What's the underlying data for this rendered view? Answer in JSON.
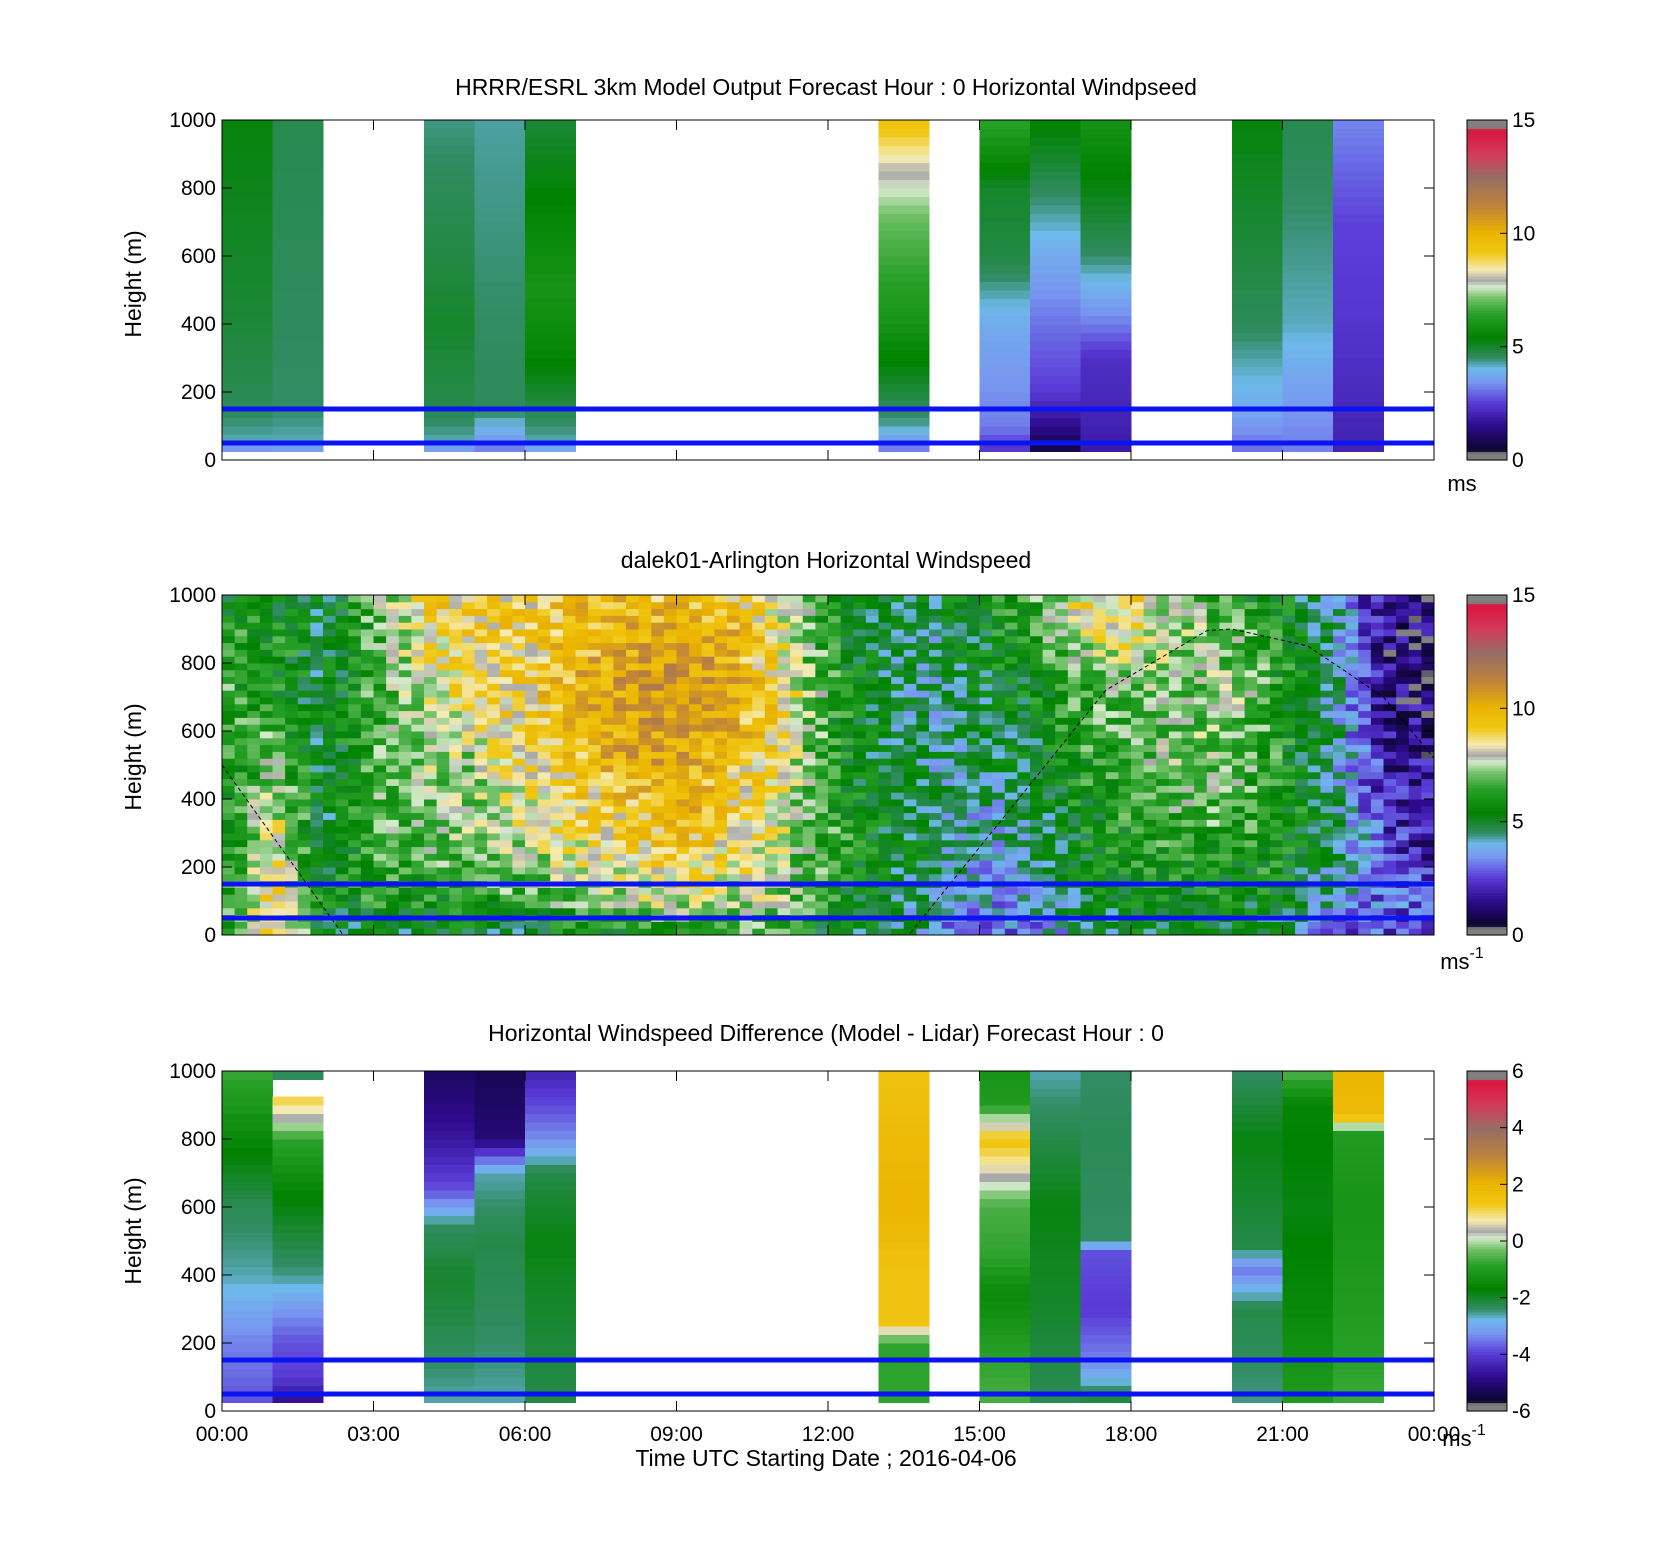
{
  "figure": {
    "xlabel": "Time UTC  Starting Date ; 2016-04-06",
    "x_tick_labels": [
      "00:00",
      "03:00",
      "06:00",
      "09:00",
      "12:00",
      "15:00",
      "18:00",
      "21:00",
      "00:00"
    ]
  },
  "chart_data": [
    {
      "type": "heatmap",
      "title": "HRRR/ESRL 3km Model Output   Forecast Hour : 0 Horizontal Windpseed",
      "ylabel": "Height (m)",
      "xlim": [
        0,
        24
      ],
      "ylim": [
        0,
        1000
      ],
      "y_ticks": [
        0,
        200,
        400,
        600,
        800,
        1000
      ],
      "colorbar": {
        "range": [
          0,
          15
        ],
        "ticks": [
          0,
          5,
          10,
          15
        ],
        "unit": "ms"
      },
      "reference_lines_m": [
        50,
        150
      ],
      "reference_line_color": "#0a14f0",
      "columns": [
        {
          "x0": 0,
          "x1": 1,
          "profile": [
            [
              25,
              2.8
            ],
            [
              50,
              4.2
            ],
            [
              150,
              4.6
            ],
            [
              400,
              4.9
            ],
            [
              1000,
              5.3
            ]
          ]
        },
        {
          "x0": 1,
          "x1": 2,
          "profile": [
            [
              25,
              3.0
            ],
            [
              50,
              4.2
            ],
            [
              150,
              4.5
            ],
            [
              1000,
              4.7
            ]
          ]
        },
        {
          "x0": 4,
          "x1": 5,
          "profile": [
            [
              25,
              3.0
            ],
            [
              50,
              4.2
            ],
            [
              150,
              4.7
            ],
            [
              400,
              5.0
            ],
            [
              1000,
              4.4
            ]
          ]
        },
        {
          "x0": 5,
          "x1": 6,
          "profile": [
            [
              25,
              3.0
            ],
            [
              50,
              3.5
            ],
            [
              100,
              4.0
            ],
            [
              150,
              4.6
            ],
            [
              1000,
              4.3
            ]
          ]
        },
        {
          "x0": 6,
          "x1": 7,
          "profile": [
            [
              25,
              3.3
            ],
            [
              50,
              4.2
            ],
            [
              300,
              5.5
            ],
            [
              500,
              6.0
            ],
            [
              1000,
              4.9
            ]
          ]
        },
        {
          "x0": 13,
          "x1": 14,
          "profile": [
            [
              25,
              3.0
            ],
            [
              100,
              4.3
            ],
            [
              400,
              6.0
            ],
            [
              700,
              7.0
            ],
            [
              850,
              8.0
            ],
            [
              1000,
              9.5
            ]
          ]
        },
        {
          "x0": 15,
          "x1": 16,
          "profile": [
            [
              25,
              2.3
            ],
            [
              100,
              3.2
            ],
            [
              400,
              3.8
            ],
            [
              600,
              4.8
            ],
            [
              800,
              5.0
            ],
            [
              1000,
              6.5
            ]
          ]
        },
        {
          "x0": 16,
          "x1": 17,
          "profile": [
            [
              25,
              0.6
            ],
            [
              100,
              1.5
            ],
            [
              200,
              2.5
            ],
            [
              400,
              3.1
            ],
            [
              600,
              3.8
            ],
            [
              800,
              4.6
            ],
            [
              1000,
              5.5
            ]
          ]
        },
        {
          "x0": 17,
          "x1": 18,
          "profile": [
            [
              25,
              1.8
            ],
            [
              100,
              2.0
            ],
            [
              300,
              2.3
            ],
            [
              400,
              3.2
            ],
            [
              600,
              4.5
            ],
            [
              1000,
              6.0
            ]
          ]
        },
        {
          "x0": 20,
          "x1": 21,
          "profile": [
            [
              25,
              3.0
            ],
            [
              150,
              3.8
            ],
            [
              400,
              4.6
            ],
            [
              1000,
              5.3
            ]
          ]
        },
        {
          "x0": 21,
          "x1": 22,
          "profile": [
            [
              25,
              3.2
            ],
            [
              200,
              3.6
            ],
            [
              400,
              4.2
            ],
            [
              1000,
              4.7
            ]
          ]
        },
        {
          "x0": 22,
          "x1": 23,
          "profile": [
            [
              25,
              2.0
            ],
            [
              400,
              2.4
            ],
            [
              700,
              2.6
            ],
            [
              1000,
              3.3
            ]
          ]
        }
      ]
    },
    {
      "type": "heatmap",
      "title": "dalek01-Arlington  Horizontal Windspeed",
      "ylabel": "Height (m)",
      "xlim": [
        0,
        24
      ],
      "ylim": [
        0,
        1000
      ],
      "y_ticks": [
        0,
        200,
        400,
        600,
        800,
        1000
      ],
      "colorbar": {
        "range": [
          0,
          15
        ],
        "ticks": [
          0,
          5,
          10,
          15
        ],
        "unit": "ms",
        "unit_exponent": "-1"
      },
      "reference_lines_m": [
        50,
        150
      ],
      "reference_line_color": "#0a14f0",
      "boundary_layer_curve": {
        "color": "#000000",
        "points": [
          [
            0,
            500
          ],
          [
            1.2,
            250
          ],
          [
            2.4,
            0
          ],
          [
            13.6,
            0
          ],
          [
            15.5,
            350
          ],
          [
            17.5,
            720
          ],
          [
            19.5,
            895
          ],
          [
            20.0,
            900
          ],
          [
            21.5,
            850
          ],
          [
            23.0,
            700
          ],
          [
            24.0,
            520
          ]
        ]
      },
      "field": {
        "anchors_x": [
          0,
          1,
          2,
          3,
          4,
          5,
          6,
          7,
          8,
          9,
          10,
          11,
          12,
          13,
          14,
          15,
          16,
          17,
          18,
          19,
          20,
          21,
          22,
          23,
          24
        ],
        "anchors_y": [
          0,
          100,
          300,
          500,
          700,
          900,
          1000
        ],
        "values": [
          [
            5.5,
            9.0,
            5.0,
            5.0,
            5.0,
            5.0,
            5.0,
            5.5,
            5.5,
            6.0,
            6.5,
            6.5,
            5.0,
            5.0,
            4.0,
            2.5,
            3.0,
            4.5,
            5.0,
            5.5,
            5.0,
            5.0,
            2.5,
            2.5,
            2.5
          ],
          [
            6.0,
            9.0,
            5.5,
            6.0,
            6.0,
            6.0,
            6.5,
            7.0,
            7.5,
            8.0,
            7.5,
            7.5,
            6.0,
            5.0,
            4.5,
            3.5,
            4.0,
            5.0,
            5.5,
            5.5,
            5.5,
            5.5,
            4.0,
            3.0,
            3.0
          ],
          [
            5.5,
            8.5,
            5.0,
            6.5,
            7.0,
            7.5,
            8.0,
            8.5,
            9.0,
            9.5,
            9.0,
            8.0,
            6.5,
            5.5,
            5.0,
            4.0,
            4.5,
            5.5,
            6.0,
            6.5,
            6.5,
            6.0,
            5.0,
            2.5,
            1.5
          ],
          [
            6.0,
            7.0,
            5.0,
            6.5,
            7.5,
            7.5,
            8.5,
            9.5,
            10.0,
            10.5,
            9.5,
            8.5,
            6.0,
            5.0,
            4.5,
            4.5,
            5.0,
            6.0,
            6.5,
            7.5,
            7.0,
            6.0,
            4.5,
            2.0,
            1.5
          ],
          [
            6.5,
            6.0,
            5.0,
            6.5,
            8.0,
            8.5,
            9.0,
            10.0,
            10.5,
            11.0,
            10.5,
            9.0,
            6.5,
            5.0,
            4.5,
            5.0,
            5.5,
            6.5,
            7.0,
            7.0,
            7.5,
            6.0,
            4.5,
            1.5,
            1.0
          ],
          [
            6.0,
            6.0,
            5.0,
            6.5,
            8.5,
            9.0,
            9.0,
            9.5,
            10.0,
            10.0,
            10.0,
            8.5,
            6.0,
            5.0,
            4.5,
            5.5,
            6.0,
            8.0,
            8.5,
            7.5,
            7.0,
            6.0,
            4.5,
            1.5,
            1.0
          ],
          [
            5.5,
            5.0,
            5.0,
            7.0,
            9.0,
            9.0,
            9.0,
            9.5,
            9.5,
            9.5,
            9.5,
            8.0,
            6.0,
            5.0,
            5.0,
            6.0,
            6.5,
            8.5,
            9.0,
            7.0,
            6.0,
            5.5,
            4.0,
            1.5,
            1.0
          ]
        ]
      }
    },
    {
      "type": "heatmap",
      "title": "Horizontal Windspeed Difference (Model - Lidar) Forecast Hour : 0",
      "ylabel": "Height (m)",
      "xlim": [
        0,
        24
      ],
      "ylim": [
        0,
        1000
      ],
      "y_ticks": [
        0,
        200,
        400,
        600,
        800,
        1000
      ],
      "colorbar": {
        "range": [
          -6,
          6
        ],
        "ticks": [
          -6,
          -4,
          -2,
          0,
          2,
          4,
          6
        ],
        "unit": "ms",
        "unit_exponent": "-1"
      },
      "reference_lines_m": [
        50,
        150
      ],
      "reference_line_color": "#0a14f0",
      "columns": [
        {
          "x0": 0,
          "x1": 1,
          "profile": [
            [
              25,
              -3.8
            ],
            [
              100,
              -3.6
            ],
            [
              200,
              -3.4
            ],
            [
              300,
              -3.0
            ],
            [
              400,
              -2.6
            ],
            [
              600,
              -2.3
            ],
            [
              800,
              -1.5
            ],
            [
              1000,
              -0.7
            ]
          ]
        },
        {
          "x0": 1,
          "x1": 2,
          "profile": [
            [
              25,
              -4.8
            ],
            [
              100,
              -4.0
            ],
            [
              200,
              -3.8
            ],
            [
              300,
              -3.2
            ],
            [
              400,
              -2.5
            ],
            [
              600,
              -1.8
            ],
            [
              800,
              -0.8
            ],
            [
              860,
              0.3
            ],
            [
              920,
              1.2
            ],
            [
              960,
              null
            ],
            [
              980,
              -2.5
            ],
            [
              1000,
              -2.0
            ]
          ]
        },
        {
          "x0": 4,
          "x1": 5,
          "profile": [
            [
              25,
              -2.6
            ],
            [
              200,
              -2.3
            ],
            [
              400,
              -2.0
            ],
            [
              550,
              -2.4
            ],
            [
              650,
              -3.8
            ],
            [
              800,
              -4.6
            ],
            [
              1000,
              -5.2
            ]
          ]
        },
        {
          "x0": 5,
          "x1": 6,
          "profile": [
            [
              25,
              -2.6
            ],
            [
              200,
              -2.4
            ],
            [
              500,
              -2.2
            ],
            [
              700,
              -2.6
            ],
            [
              800,
              -5.0
            ],
            [
              1000,
              -5.3
            ]
          ]
        },
        {
          "x0": 6,
          "x1": 7,
          "profile": [
            [
              25,
              -2.2
            ],
            [
              200,
              -2.1
            ],
            [
              500,
              -1.8
            ],
            [
              700,
              -2.2
            ],
            [
              800,
              -3.3
            ],
            [
              1000,
              -4.4
            ]
          ]
        },
        {
          "x0": 13,
          "x1": 14,
          "profile": [
            [
              25,
              -0.8
            ],
            [
              200,
              -0.8
            ],
            [
              260,
              1.5
            ],
            [
              400,
              1.5
            ],
            [
              600,
              2.0
            ],
            [
              800,
              1.8
            ],
            [
              1000,
              1.5
            ]
          ]
        },
        {
          "x0": 15,
          "x1": 16,
          "profile": [
            [
              25,
              -0.6
            ],
            [
              150,
              -0.8
            ],
            [
              350,
              -1.5
            ],
            [
              450,
              -0.8
            ],
            [
              600,
              -0.6
            ],
            [
              700,
              0.5
            ],
            [
              800,
              1.5
            ],
            [
              900,
              -1.0
            ],
            [
              1000,
              -1.2
            ]
          ]
        },
        {
          "x0": 16,
          "x1": 17,
          "profile": [
            [
              25,
              -2.3
            ],
            [
              300,
              -2.0
            ],
            [
              600,
              -1.8
            ],
            [
              1000,
              -2.6
            ]
          ]
        },
        {
          "x0": 17,
          "x1": 18,
          "profile": [
            [
              25,
              -2.0
            ],
            [
              150,
              -3.4
            ],
            [
              300,
              -4.0
            ],
            [
              470,
              -3.8
            ],
            [
              500,
              -2.4
            ],
            [
              800,
              -2.3
            ],
            [
              1000,
              -2.4
            ]
          ]
        },
        {
          "x0": 20,
          "x1": 21,
          "profile": [
            [
              25,
              -2.5
            ],
            [
              300,
              -2.2
            ],
            [
              420,
              -3.5
            ],
            [
              480,
              -2.2
            ],
            [
              800,
              -1.8
            ],
            [
              1000,
              -2.4
            ]
          ]
        },
        {
          "x0": 21,
          "x1": 22,
          "profile": [
            [
              25,
              -1.0
            ],
            [
              300,
              -1.5
            ],
            [
              600,
              -1.8
            ],
            [
              900,
              -1.6
            ],
            [
              1000,
              -0.5
            ]
          ]
        },
        {
          "x0": 22,
          "x1": 23,
          "profile": [
            [
              25,
              -0.7
            ],
            [
              300,
              -1.0
            ],
            [
              600,
              -1.2
            ],
            [
              820,
              -1.0
            ],
            [
              870,
              1.8
            ],
            [
              1000,
              2.0
            ]
          ]
        }
      ]
    }
  ]
}
